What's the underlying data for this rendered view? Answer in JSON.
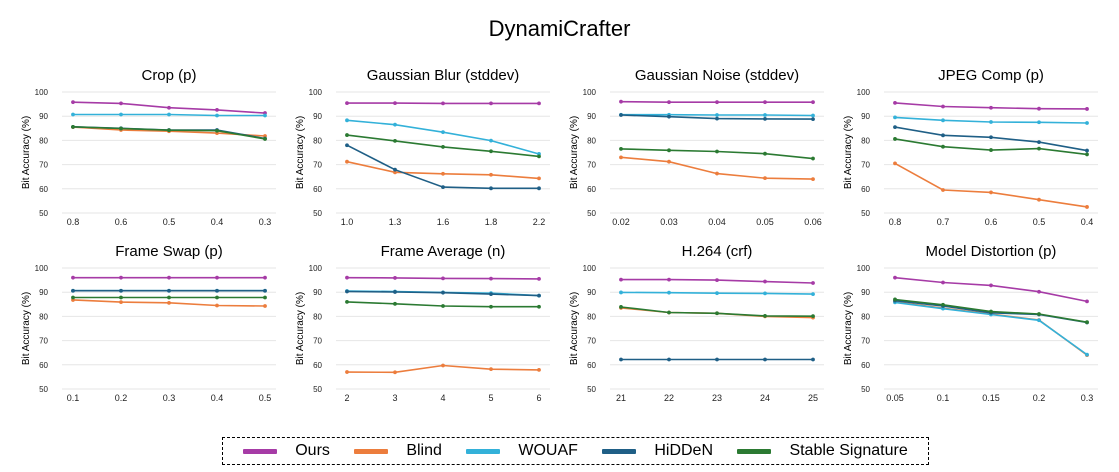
{
  "figure": {
    "title": "DynamiCrafter"
  },
  "legend": [
    {
      "name": "Ours",
      "color": "#a63ba6"
    },
    {
      "name": "Blind",
      "color": "#ec7d3d"
    },
    {
      "name": "WOUAF",
      "color": "#33b1d9"
    },
    {
      "name": "HiDDeN",
      "color": "#1f5f86"
    },
    {
      "name": "Stable Signature",
      "color": "#2b7a32"
    }
  ],
  "chart_data": [
    {
      "type": "line",
      "title": "Crop (p)",
      "ylabel": "Bit Accuracy (%)",
      "ylim": [
        50,
        100
      ],
      "yticks": [
        "50",
        "60",
        "70",
        "80",
        "90",
        "100"
      ],
      "categories": [
        "0.8",
        "0.6",
        "0.5",
        "0.4",
        "0.3"
      ],
      "series": [
        {
          "name": "Ours",
          "values": [
            95.8,
            95.3,
            93.5,
            92.6,
            91.3
          ]
        },
        {
          "name": "Blind",
          "values": [
            85.5,
            84.3,
            83.8,
            83.0,
            81.8
          ]
        },
        {
          "name": "WOUAF",
          "values": [
            90.7,
            90.7,
            90.7,
            90.3,
            90.3
          ]
        },
        {
          "name": "HiDDeN",
          "values": [
            85.6,
            85.0,
            84.3,
            84.3,
            80.8
          ]
        },
        {
          "name": "Stable Signature",
          "values": [
            85.6,
            84.9,
            84.2,
            84.0,
            80.6
          ]
        }
      ]
    },
    {
      "type": "line",
      "title": "Gaussian Blur (stddev)",
      "ylabel": "Bit Accuracy (%)",
      "ylim": [
        50,
        100
      ],
      "yticks": [
        "50",
        "60",
        "70",
        "80",
        "90",
        "100"
      ],
      "categories": [
        "1.0",
        "1.3",
        "1.6",
        "1.8",
        "2.2"
      ],
      "series": [
        {
          "name": "Ours",
          "values": [
            95.4,
            95.4,
            95.3,
            95.3,
            95.3
          ]
        },
        {
          "name": "Blind",
          "values": [
            71.2,
            66.8,
            66.2,
            65.8,
            64.3
          ]
        },
        {
          "name": "WOUAF",
          "values": [
            88.3,
            86.5,
            83.4,
            79.9,
            74.4
          ]
        },
        {
          "name": "HiDDeN",
          "values": [
            78.0,
            67.9,
            60.7,
            60.2,
            60.2
          ]
        },
        {
          "name": "Stable Signature",
          "values": [
            82.2,
            79.8,
            77.3,
            75.5,
            73.4
          ]
        }
      ]
    },
    {
      "type": "line",
      "title": "Gaussian Noise (stddev)",
      "ylabel": "Bit Accuracy (%)",
      "ylim": [
        50,
        100
      ],
      "yticks": [
        "50",
        "60",
        "70",
        "80",
        "90",
        "100"
      ],
      "categories": [
        "0.02",
        "0.03",
        "0.04",
        "0.05",
        "0.06"
      ],
      "series": [
        {
          "name": "Ours",
          "values": [
            96.0,
            95.8,
            95.8,
            95.8,
            95.8
          ]
        },
        {
          "name": "Blind",
          "values": [
            73.0,
            71.2,
            66.3,
            64.4,
            64.0
          ]
        },
        {
          "name": "WOUAF",
          "values": [
            90.6,
            90.6,
            90.5,
            90.5,
            90.3
          ]
        },
        {
          "name": "HiDDeN",
          "values": [
            90.5,
            89.8,
            89.0,
            88.9,
            88.8
          ]
        },
        {
          "name": "Stable Signature",
          "values": [
            76.5,
            75.9,
            75.4,
            74.5,
            72.5
          ]
        }
      ]
    },
    {
      "type": "line",
      "title": "JPEG Comp (p)",
      "ylabel": "Bit Accuracy (%)",
      "ylim": [
        50,
        100
      ],
      "yticks": [
        "50",
        "60",
        "70",
        "80",
        "90",
        "100"
      ],
      "categories": [
        "0.8",
        "0.7",
        "0.6",
        "0.5",
        "0.4"
      ],
      "series": [
        {
          "name": "Ours",
          "values": [
            95.5,
            94.0,
            93.5,
            93.1,
            93.0
          ]
        },
        {
          "name": "Blind",
          "values": [
            70.5,
            59.5,
            58.5,
            55.5,
            52.5
          ]
        },
        {
          "name": "WOUAF",
          "values": [
            89.5,
            88.3,
            87.6,
            87.5,
            87.2
          ]
        },
        {
          "name": "HiDDeN",
          "values": [
            85.5,
            82.1,
            81.3,
            79.3,
            75.8
          ]
        },
        {
          "name": "Stable Signature",
          "values": [
            80.6,
            77.4,
            76.0,
            76.6,
            74.2
          ]
        }
      ]
    },
    {
      "type": "line",
      "title": "Frame Swap (p)",
      "ylabel": "Bit Accuracy (%)",
      "ylim": [
        50,
        100
      ],
      "yticks": [
        "50",
        "60",
        "70",
        "80",
        "90",
        "100"
      ],
      "categories": [
        "0.1",
        "0.2",
        "0.3",
        "0.4",
        "0.5"
      ],
      "series": [
        {
          "name": "Ours",
          "values": [
            96.0,
            96.0,
            96.0,
            96.0,
            96.0
          ]
        },
        {
          "name": "Blind",
          "values": [
            86.8,
            85.9,
            85.6,
            84.5,
            84.3
          ]
        },
        {
          "name": "WOUAF",
          "values": [
            90.6,
            90.6,
            90.6,
            90.6,
            90.6
          ]
        },
        {
          "name": "HiDDeN",
          "values": [
            90.6,
            90.6,
            90.6,
            90.6,
            90.6
          ]
        },
        {
          "name": "Stable Signature",
          "values": [
            87.8,
            87.8,
            87.8,
            87.8,
            87.8
          ]
        }
      ]
    },
    {
      "type": "line",
      "title": "Frame Average (n)",
      "ylabel": "Bit Accuracy (%)",
      "ylim": [
        50,
        100
      ],
      "yticks": [
        "50",
        "60",
        "70",
        "80",
        "90",
        "100"
      ],
      "categories": [
        "2",
        "3",
        "4",
        "5",
        "6"
      ],
      "series": [
        {
          "name": "Ours",
          "values": [
            96.0,
            95.9,
            95.7,
            95.6,
            95.5
          ]
        },
        {
          "name": "Blind",
          "values": [
            57.0,
            56.9,
            59.7,
            58.2,
            57.9
          ]
        },
        {
          "name": "WOUAF",
          "values": [
            90.5,
            90.3,
            89.9,
            89.6,
            88.6
          ]
        },
        {
          "name": "HiDDeN",
          "values": [
            90.3,
            90.1,
            89.8,
            89.2,
            88.6
          ]
        },
        {
          "name": "Stable Signature",
          "values": [
            86.0,
            85.2,
            84.3,
            84.0,
            84.0
          ]
        }
      ]
    },
    {
      "type": "line",
      "title": "H.264 (crf)",
      "ylabel": "Bit Accuracy (%)",
      "ylim": [
        50,
        100
      ],
      "yticks": [
        "50",
        "60",
        "70",
        "80",
        "90",
        "100"
      ],
      "categories": [
        "21",
        "22",
        "23",
        "24",
        "25"
      ],
      "series": [
        {
          "name": "Ours",
          "values": [
            95.2,
            95.2,
            95.0,
            94.4,
            93.8
          ]
        },
        {
          "name": "Blind",
          "values": [
            83.5,
            81.6,
            81.3,
            80.0,
            79.5
          ]
        },
        {
          "name": "WOUAF",
          "values": [
            89.9,
            89.8,
            89.6,
            89.5,
            89.2
          ]
        },
        {
          "name": "HiDDeN",
          "values": [
            62.2,
            62.2,
            62.2,
            62.2,
            62.2
          ]
        },
        {
          "name": "Stable Signature",
          "values": [
            83.9,
            81.6,
            81.3,
            80.2,
            80.1
          ]
        }
      ]
    },
    {
      "type": "line",
      "title": "Model Distortion (p)",
      "ylabel": "Bit Accuracy (%)",
      "ylim": [
        50,
        100
      ],
      "yticks": [
        "50",
        "60",
        "70",
        "80",
        "90",
        "100"
      ],
      "categories": [
        "0.05",
        "0.1",
        "0.15",
        "0.2",
        "0.3"
      ],
      "series": [
        {
          "name": "Ours",
          "values": [
            96.0,
            94.0,
            92.8,
            90.2,
            86.2
          ]
        },
        {
          "name": "Blind",
          "values": [
            86.0,
            83.4,
            81.0,
            78.5,
            64.0
          ]
        },
        {
          "name": "WOUAF",
          "values": [
            85.8,
            83.2,
            80.8,
            78.4,
            64.2
          ]
        },
        {
          "name": "HiDDeN",
          "values": [
            86.5,
            84.3,
            81.5,
            80.8,
            77.5
          ]
        },
        {
          "name": "Stable Signature",
          "values": [
            87.0,
            84.8,
            82.0,
            81.0,
            77.6
          ]
        }
      ]
    }
  ]
}
